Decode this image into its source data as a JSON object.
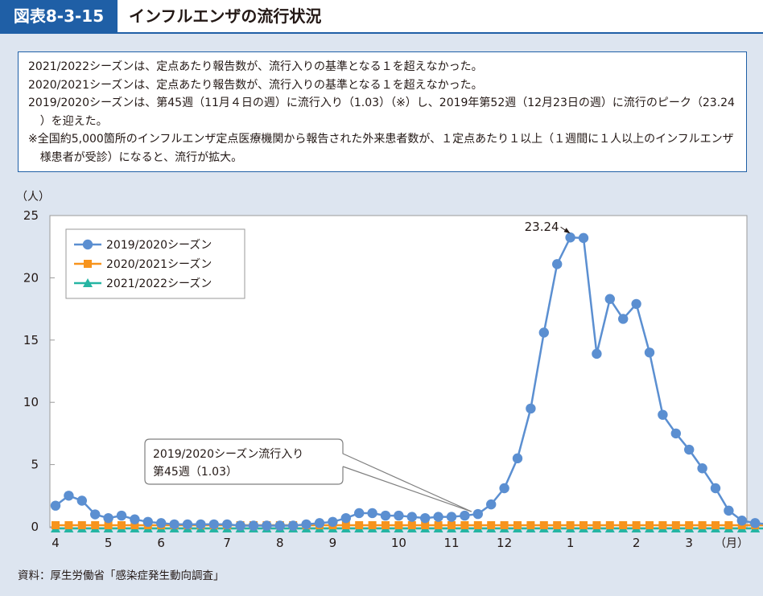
{
  "header": {
    "figure_id": "図表8-3-15",
    "title": "インフルエンザの流行状況"
  },
  "notes": [
    "2021/2022シーズンは、定点あたり報告数が、流行入りの基準となる１を超えなかった。",
    "2020/2021シーズンは、定点あたり報告数が、流行入りの基準となる１を超えなかった。",
    "2019/2020シーズンは、第45週（11月４日の週）に流行入り（1.03）（※）し、2019年第52週（12月23日の週）に流行のピーク（23.24 ）を迎えた。",
    "※全国約5,000箇所のインフルエンザ定点医療機関から報告された外来患者数が、１定点あたり１以上（１週間に１人以上のインフルエンザ様患者が受診）になると、流行が拡大。"
  ],
  "source": "資料：厚生労働省「感染症発生動向調査」",
  "colors": {
    "header_bar": "#1f5fa6",
    "series_2019": "#5b8fd1",
    "series_2020": "#f7941d",
    "series_2021": "#26b5a3"
  },
  "chart_data": {
    "type": "line",
    "y_unit": "（人）",
    "x_unit": "（月）",
    "ylim": [
      0,
      25
    ],
    "yticks": [
      0,
      5,
      10,
      15,
      20,
      25
    ],
    "grid": false,
    "legend_position": "top-left",
    "x_month_labels": [
      {
        "label": "4",
        "week": 0
      },
      {
        "label": "5",
        "week": 4
      },
      {
        "label": "6",
        "week": 8
      },
      {
        "label": "7",
        "week": 13
      },
      {
        "label": "8",
        "week": 17
      },
      {
        "label": "9",
        "week": 21
      },
      {
        "label": "10",
        "week": 26
      },
      {
        "label": "11",
        "week": 30
      },
      {
        "label": "12",
        "week": 34
      },
      {
        "label": "1",
        "week": 39
      },
      {
        "label": "2",
        "week": 44
      },
      {
        "label": "3",
        "week": 48
      }
    ],
    "series": [
      {
        "name": "2019/2020シーズン",
        "marker": "circle",
        "values": [
          1.7,
          2.5,
          2.1,
          1.0,
          0.7,
          0.9,
          0.6,
          0.4,
          0.3,
          0.2,
          0.2,
          0.2,
          0.2,
          0.2,
          0.1,
          0.1,
          0.1,
          0.1,
          0.1,
          0.2,
          0.3,
          0.4,
          0.7,
          1.1,
          1.1,
          0.9,
          0.9,
          0.8,
          0.7,
          0.8,
          0.8,
          0.9,
          1.03,
          1.8,
          3.1,
          5.5,
          9.5,
          15.6,
          21.1,
          23.24,
          23.2,
          13.9,
          18.3,
          16.7,
          17.9,
          14.0,
          9.0,
          7.5,
          6.2,
          4.7,
          3.1,
          1.3,
          0.5,
          0.3,
          0.2
        ]
      },
      {
        "name": "2020/2021シーズン",
        "marker": "square",
        "values": [
          0.0,
          0.0,
          0.0,
          0.0,
          0.0,
          0.0,
          0.0,
          0.0,
          0.0,
          0.0,
          0.0,
          0.0,
          0.0,
          0.0,
          0.0,
          0.0,
          0.0,
          0.0,
          0.0,
          0.0,
          0.0,
          0.0,
          0.0,
          0.0,
          0.0,
          0.0,
          0.0,
          0.0,
          0.0,
          0.0,
          0.0,
          0.0,
          0.0,
          0.0,
          0.0,
          0.0,
          0.0,
          0.0,
          0.0,
          0.0,
          0.0,
          0.0,
          0.0,
          0.0,
          0.0,
          0.0,
          0.0,
          0.0,
          0.0,
          0.0,
          0.0,
          0.0,
          0.0,
          0.0,
          0.0
        ]
      },
      {
        "name": "2021/2022シーズン",
        "marker": "triangle",
        "values": [
          0.0,
          0.0,
          0.0,
          0.0,
          0.0,
          0.0,
          0.0,
          0.0,
          0.0,
          0.0,
          0.0,
          0.0,
          0.0,
          0.0,
          0.0,
          0.0,
          0.0,
          0.0,
          0.0,
          0.0,
          0.0,
          0.0,
          0.0,
          0.0,
          0.0,
          0.0,
          0.0,
          0.0,
          0.0,
          0.0,
          0.0,
          0.0,
          0.0,
          0.0,
          0.0,
          0.0,
          0.0,
          0.0,
          0.0,
          0.0,
          0.0,
          0.0,
          0.0,
          0.0,
          0.0,
          0.0,
          0.0,
          0.0,
          0.0,
          0.0,
          0.0,
          0.0,
          0.0,
          0.0,
          0.0
        ]
      }
    ],
    "annotations": {
      "peak": {
        "label": "23.24",
        "week": 39,
        "value": 23.24
      },
      "onset": {
        "lines": [
          "2019/2020シーズン流行入り",
          "第45週（1.03）"
        ],
        "week": 32,
        "value": 1.03
      }
    }
  }
}
